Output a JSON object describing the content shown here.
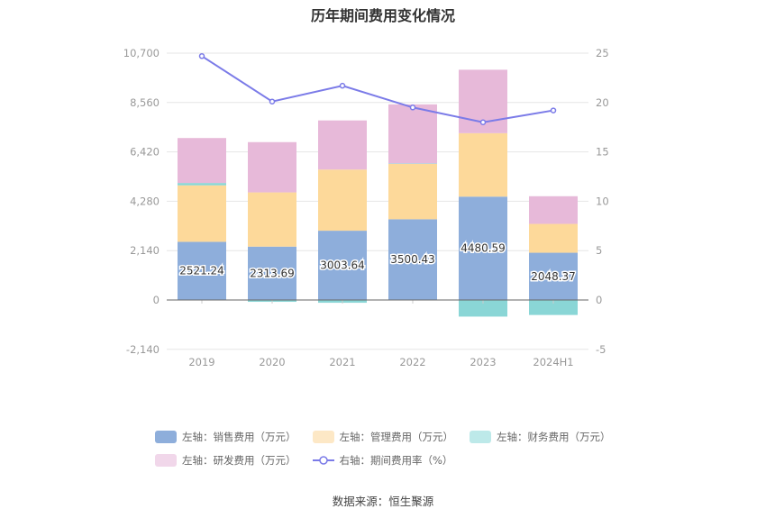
{
  "title": "历年期间费用变化情况",
  "source": "数据来源：恒生聚源",
  "chart_data": {
    "type": "bar",
    "stacked": true,
    "categories": [
      "2019",
      "2020",
      "2021",
      "2022",
      "2023",
      "2024H1"
    ],
    "series": [
      {
        "name": "左轴：销售费用（万元）",
        "axis": "left",
        "color": "#8eaedb",
        "values": [
          2521.24,
          2313.69,
          3003.64,
          3500.43,
          4480.59,
          2048.37
        ]
      },
      {
        "name": "左轴：管理费用（万元）",
        "axis": "left",
        "color": "#fdd99a",
        "values": [
          2450,
          2350,
          2650,
          2400,
          2750,
          1250
        ]
      },
      {
        "name": "左轴：财务费用（万元）",
        "axis": "left",
        "color": "#8ad6d6",
        "values": [
          100,
          -80,
          -120,
          20,
          -720,
          -650
        ]
      },
      {
        "name": "左轴：研发费用（万元）",
        "axis": "left",
        "color": "#e7b9d9",
        "values": [
          1950,
          2180,
          2130,
          2560,
          2750,
          1200
        ]
      }
    ],
    "line": {
      "name": "右轴：期间费用率（%）",
      "axis": "right",
      "color": "#7b7be8",
      "values": [
        24.7,
        20.1,
        21.7,
        19.5,
        18.0,
        19.2
      ]
    },
    "bar_labels": [
      "2521.24",
      "2313.69",
      "3003.64",
      "3500.43",
      "4480.59",
      "2048.37"
    ],
    "left_axis": {
      "min": -2140,
      "max": 10700,
      "ticks": [
        "-2,140",
        "0",
        "2,140",
        "4,280",
        "6,420",
        "8,560",
        "10,700"
      ],
      "tick_values": [
        -2140,
        0,
        2140,
        4280,
        6420,
        8560,
        10700
      ]
    },
    "right_axis": {
      "min": -5,
      "max": 25,
      "ticks": [
        "-5",
        "0",
        "5",
        "10",
        "15",
        "20",
        "25"
      ],
      "tick_values": [
        -5,
        0,
        5,
        10,
        15,
        20,
        25
      ]
    },
    "grid": true,
    "legend_position": "bottom"
  },
  "legend": [
    [
      "左轴：销售费用（万元）",
      "左轴：管理费用（万元）",
      "左轴：财务费用（万元）"
    ],
    [
      "左轴：研发费用（万元）",
      "右轴：期间费用率（%）"
    ]
  ],
  "legend_colors": {
    "左轴：销售费用（万元）": "#8eaedb",
    "左轴：管理费用（万元）": "#fde8c6",
    "左轴：财务费用（万元）": "#bde9e9",
    "左轴：研发费用（万元）": "#f1d7ea"
  }
}
